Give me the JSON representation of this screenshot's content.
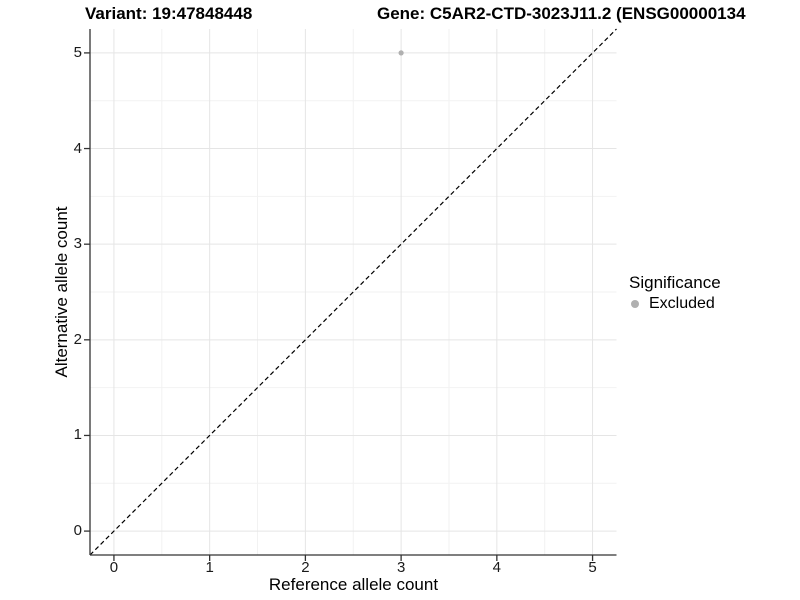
{
  "chart_data": {
    "type": "scatter",
    "titles": {
      "left": "Variant: 19:47848448",
      "right": "Gene: C5AR2-CTD-3023J11.2 (ENSG00000134"
    },
    "xlabel": "Reference allele count",
    "ylabel": "Alternative allele count",
    "x_ticks": [
      0,
      1,
      2,
      3,
      4,
      5
    ],
    "y_ticks": [
      0,
      1,
      2,
      3,
      4,
      5
    ],
    "x_minor": [
      0.5,
      1.5,
      2.5,
      3.5,
      4.5
    ],
    "y_minor": [
      0.5,
      1.5,
      2.5,
      3.5,
      4.5
    ],
    "xlim": [
      -0.25,
      5.25
    ],
    "ylim": [
      -0.25,
      5.25
    ],
    "grid": "on",
    "points": [
      {
        "x": 3,
        "y": 5,
        "significance": "Excluded"
      }
    ],
    "identity_line": {
      "style": "dashed",
      "from": [
        -0.25,
        -0.25
      ],
      "to": [
        5.25,
        5.25
      ]
    },
    "legend": {
      "position": "right",
      "title": "Significance",
      "items": [
        {
          "label": "Excluded",
          "color": "#b0b0b0"
        }
      ]
    },
    "colors": {
      "point": "#b0b0b0",
      "grid_major": "#e5e5e5",
      "grid_minor": "#f2f2f2",
      "axis": "#333333",
      "identity_line": "#000000",
      "background": "#ffffff"
    }
  }
}
